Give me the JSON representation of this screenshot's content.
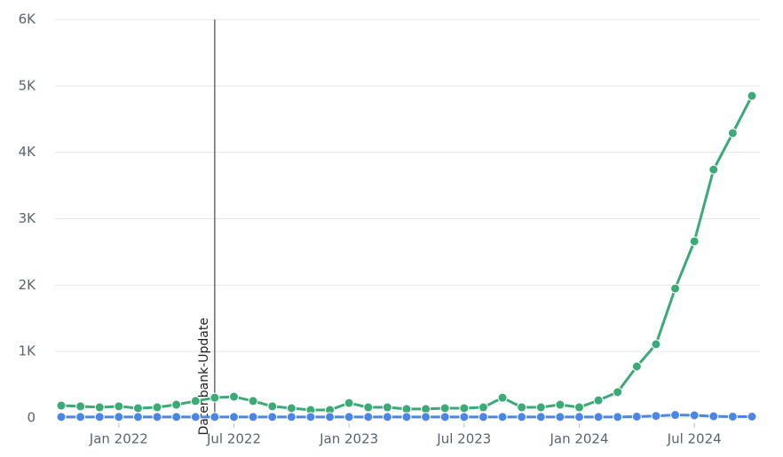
{
  "chart_data": {
    "type": "line",
    "x": [
      "2021-10",
      "2021-11",
      "2021-12",
      "2022-01",
      "2022-02",
      "2022-03",
      "2022-04",
      "2022-05",
      "2022-06",
      "2022-07",
      "2022-08",
      "2022-09",
      "2022-10",
      "2022-11",
      "2022-12",
      "2023-01",
      "2023-02",
      "2023-03",
      "2023-04",
      "2023-05",
      "2023-06",
      "2023-07",
      "2023-08",
      "2023-09",
      "2023-10",
      "2023-11",
      "2023-12",
      "2024-01",
      "2024-02",
      "2024-03",
      "2024-04",
      "2024-05",
      "2024-06",
      "2024-07",
      "2024-08",
      "2024-09",
      "2024-10"
    ],
    "series": [
      {
        "color": "#3aaa77",
        "values": [
          187,
          175,
          160,
          175,
          147,
          160,
          200,
          255,
          305,
          320,
          255,
          175,
          147,
          120,
          120,
          225,
          160,
          160,
          135,
          135,
          147,
          147,
          160,
          305,
          160,
          160,
          200,
          160,
          265,
          390,
          775,
          1110,
          1950,
          2660,
          3740,
          4290,
          4850
        ]
      },
      {
        "color": "#4a86e8",
        "values": [
          15,
          15,
          15,
          15,
          15,
          15,
          15,
          15,
          15,
          15,
          15,
          15,
          15,
          15,
          15,
          15,
          15,
          15,
          15,
          15,
          15,
          15,
          15,
          15,
          15,
          15,
          15,
          15,
          15,
          15,
          20,
          30,
          45,
          40,
          25,
          20,
          20
        ]
      }
    ],
    "xlim": [
      "2021-10",
      "2024-10"
    ],
    "xticks": [
      {
        "value": "2022-01",
        "label": "Jan 2022"
      },
      {
        "value": "2022-07",
        "label": "Jul 2022"
      },
      {
        "value": "2023-01",
        "label": "Jan 2023"
      },
      {
        "value": "2023-07",
        "label": "Jul 2023"
      },
      {
        "value": "2024-01",
        "label": "Jan 2024"
      },
      {
        "value": "2024-07",
        "label": "Jul 2024"
      }
    ],
    "ylim": [
      0,
      6000
    ],
    "yticks": [
      0,
      {
        "value": 1000,
        "label": "1K"
      },
      {
        "value": 2000,
        "label": "2K"
      },
      {
        "value": 3000,
        "label": "3K"
      },
      {
        "value": 4000,
        "label": "4K"
      },
      {
        "value": 5000,
        "label": "5K"
      },
      {
        "value": 6000,
        "label": "6K"
      }
    ],
    "grid": true,
    "annotations": [
      {
        "x": "2022-06",
        "text": "Datenbank-Update"
      }
    ]
  }
}
